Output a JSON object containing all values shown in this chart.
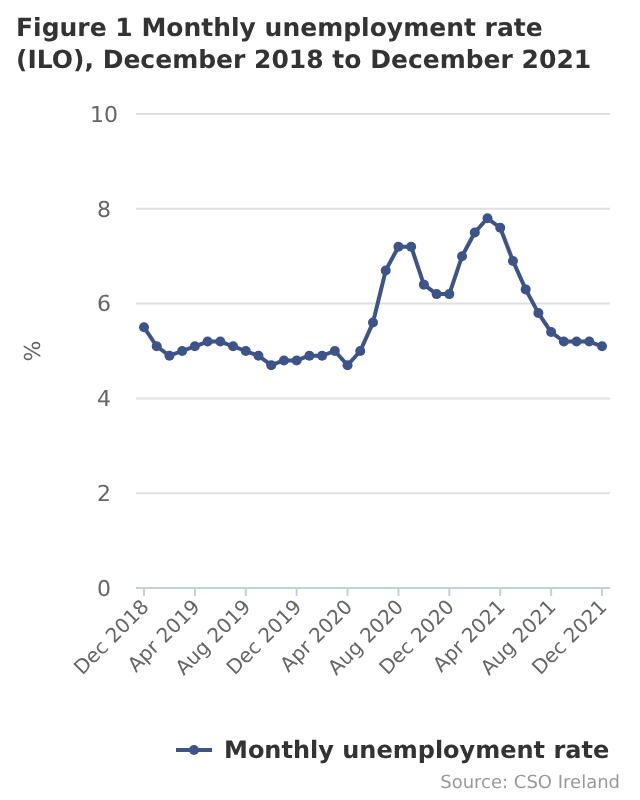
{
  "chart_data": {
    "type": "line",
    "title": "Figure 1 Monthly unemployment rate (ILO), December 2018 to December 2021",
    "ylabel": "%",
    "categories": [
      "Dec 2018",
      null,
      null,
      null,
      "Apr 2019",
      null,
      null,
      null,
      "Aug 2019",
      null,
      null,
      null,
      "Dec 2019",
      null,
      null,
      null,
      "Apr 2020",
      null,
      null,
      null,
      "Aug 2020",
      null,
      null,
      null,
      "Dec 2020",
      null,
      null,
      null,
      "Apr 2021",
      null,
      null,
      null,
      "Aug 2021",
      null,
      null,
      null,
      "Dec 2021"
    ],
    "series": [
      {
        "name": "Monthly unemployment rate",
        "color": "#3d5488",
        "values": [
          5.5,
          5.1,
          4.9,
          5.0,
          5.1,
          5.2,
          5.2,
          5.1,
          5.0,
          4.9,
          4.7,
          4.8,
          4.8,
          4.9,
          4.9,
          5.0,
          4.7,
          5.0,
          5.6,
          6.7,
          7.2,
          7.2,
          6.4,
          6.2,
          6.2,
          7.0,
          7.5,
          7.8,
          7.6,
          6.9,
          6.3,
          5.8,
          5.4,
          5.2,
          5.2,
          5.2,
          5.1
        ]
      }
    ],
    "ylim": [
      0,
      10
    ],
    "yticks": [
      0,
      2,
      4,
      6,
      8,
      10
    ],
    "grid": "y",
    "legend": "bottom",
    "marker": "circle",
    "line_style": "solid",
    "annotations": [
      "Source: CSO Ireland"
    ]
  }
}
